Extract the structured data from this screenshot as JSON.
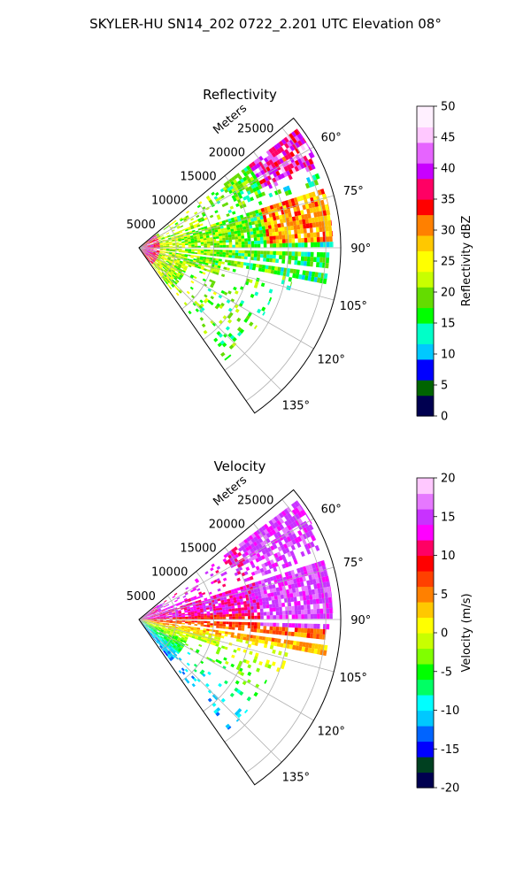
{
  "figure_title": "SKYLER-HU  SN14_202  0722_2.201 UTC Elevation 08°",
  "chart_data": [
    {
      "type": "heatmap",
      "projection": "polar-sector",
      "title": "Reflectivity",
      "range_label": "Meters",
      "range_ticks": [
        5000,
        10000,
        15000,
        20000,
        25000
      ],
      "range_lim": [
        0,
        27000
      ],
      "azimuth_lim": [
        50,
        145
      ],
      "azimuth_ticks": [
        60,
        75,
        90,
        105,
        120,
        135
      ],
      "azimuth_tick_labels": [
        "60°",
        "75°",
        "90°",
        "105°",
        "120°",
        "135°"
      ],
      "grid": true,
      "colorbar": {
        "label": "Reflectivity dBZ",
        "range": [
          0,
          50
        ],
        "ticks": [
          0,
          5,
          10,
          15,
          20,
          25,
          30,
          35,
          40,
          45,
          50
        ],
        "colormap": [
          "#000050",
          "#006400",
          "#0000ff",
          "#00c8ff",
          "#00ffc8",
          "#00ff00",
          "#64dc00",
          "#c8ff00",
          "#ffff00",
          "#ffc800",
          "#ff8000",
          "#ff0000",
          "#ff0064",
          "#c800ff",
          "#e664ff",
          "#ffc8ff",
          "#fff0ff"
        ]
      }
    },
    {
      "type": "heatmap",
      "projection": "polar-sector",
      "title": "Velocity",
      "range_label": "Meters",
      "range_ticks": [
        5000,
        10000,
        15000,
        20000,
        25000
      ],
      "range_lim": [
        0,
        27000
      ],
      "azimuth_lim": [
        50,
        145
      ],
      "azimuth_ticks": [
        60,
        75,
        90,
        105,
        120,
        135
      ],
      "azimuth_tick_labels": [
        "60°",
        "75°",
        "90°",
        "105°",
        "120°",
        "135°"
      ],
      "grid": true,
      "colorbar": {
        "label": "Velocity (m/s)",
        "range": [
          -20,
          20
        ],
        "ticks": [
          -20,
          -15,
          -10,
          -5,
          0,
          5,
          10,
          15,
          20
        ],
        "colormap": [
          "#000050",
          "#004020",
          "#0000ff",
          "#0064ff",
          "#00c8ff",
          "#00ffff",
          "#00ff64",
          "#00ff00",
          "#80ff00",
          "#c8ff00",
          "#ffff00",
          "#ffc800",
          "#ff8000",
          "#ff4000",
          "#ff0000",
          "#ff0064",
          "#ff00ff",
          "#c832ff",
          "#e678ff",
          "#ffc8ff"
        ]
      }
    }
  ]
}
